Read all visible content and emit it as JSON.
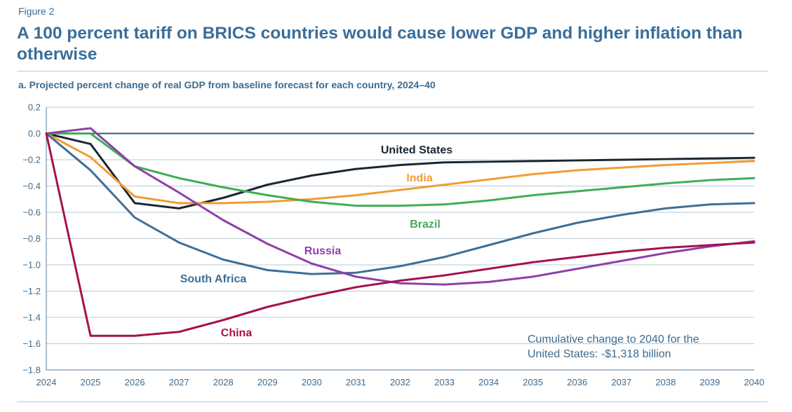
{
  "figure_label": "Figure 2",
  "title": "A 100 percent tariff on BRICS countries would cause lower GDP and higher inflation than otherwise",
  "chart_data": {
    "type": "line",
    "title": "a. Projected percent change of real GDP from baseline forecast for each country, 2024–40",
    "xlabel": "",
    "ylabel": "",
    "x": [
      2024,
      2025,
      2026,
      2027,
      2028,
      2029,
      2030,
      2031,
      2032,
      2033,
      2034,
      2035,
      2036,
      2037,
      2038,
      2039,
      2040
    ],
    "x_tick_labels": [
      "2024",
      "2025",
      "2026",
      "2027",
      "2028",
      "2029",
      "2030",
      "2031",
      "2032",
      "2033",
      "2034",
      "2035",
      "2036",
      "2037",
      "2038",
      "2039",
      "2040"
    ],
    "ylim": [
      -1.8,
      0.2
    ],
    "y_ticks": [
      0.2,
      0.0,
      -0.2,
      -0.4,
      -0.6,
      -0.8,
      -1.0,
      -1.2,
      -1.4,
      -1.6,
      -1.8
    ],
    "y_tick_labels": [
      "0.2",
      "0.0",
      "−0.2",
      "−0.4",
      "−0.6",
      "−0.8",
      "−1.0",
      "−1.2",
      "−1.4",
      "−1.6",
      "−1.8"
    ],
    "grid": true,
    "series": [
      {
        "name": "United States",
        "color": "#1b2631",
        "values": [
          0.0,
          -0.08,
          -0.53,
          -0.57,
          -0.49,
          -0.39,
          -0.32,
          -0.27,
          -0.24,
          -0.22,
          -0.215,
          -0.21,
          -0.205,
          -0.2,
          -0.195,
          -0.19,
          -0.185
        ]
      },
      {
        "name": "India",
        "color": "#f39c33",
        "values": [
          0.0,
          -0.18,
          -0.48,
          -0.53,
          -0.53,
          -0.52,
          -0.5,
          -0.47,
          -0.43,
          -0.39,
          -0.35,
          -0.31,
          -0.28,
          -0.26,
          -0.24,
          -0.225,
          -0.21
        ]
      },
      {
        "name": "Brazil",
        "color": "#3fae55",
        "values": [
          0.0,
          0.0,
          -0.25,
          -0.34,
          -0.41,
          -0.47,
          -0.52,
          -0.55,
          -0.55,
          -0.54,
          -0.51,
          -0.47,
          -0.44,
          -0.41,
          -0.38,
          -0.355,
          -0.34
        ]
      },
      {
        "name": "South Africa",
        "color": "#3d6f99",
        "values": [
          0.0,
          -0.28,
          -0.64,
          -0.83,
          -0.96,
          -1.04,
          -1.07,
          -1.06,
          -1.01,
          -0.94,
          -0.85,
          -0.76,
          -0.68,
          -0.62,
          -0.57,
          -0.54,
          -0.53
        ]
      },
      {
        "name": "Russia",
        "color": "#8e3fab",
        "values": [
          0.0,
          0.04,
          -0.25,
          -0.45,
          -0.66,
          -0.84,
          -0.99,
          -1.09,
          -1.14,
          -1.15,
          -1.13,
          -1.09,
          -1.03,
          -0.97,
          -0.91,
          -0.86,
          -0.82
        ]
      },
      {
        "name": "China",
        "color": "#a5124f",
        "values": [
          0.0,
          -1.54,
          -1.54,
          -1.51,
          -1.42,
          -1.32,
          -1.24,
          -1.17,
          -1.12,
          -1.08,
          -1.03,
          -0.98,
          -0.94,
          -0.9,
          -0.87,
          -0.85,
          -0.83
        ]
      }
    ],
    "annotation": {
      "line1": "Cumulative change to 2040 for the",
      "line2": "United States: -$1,318 billion"
    }
  }
}
